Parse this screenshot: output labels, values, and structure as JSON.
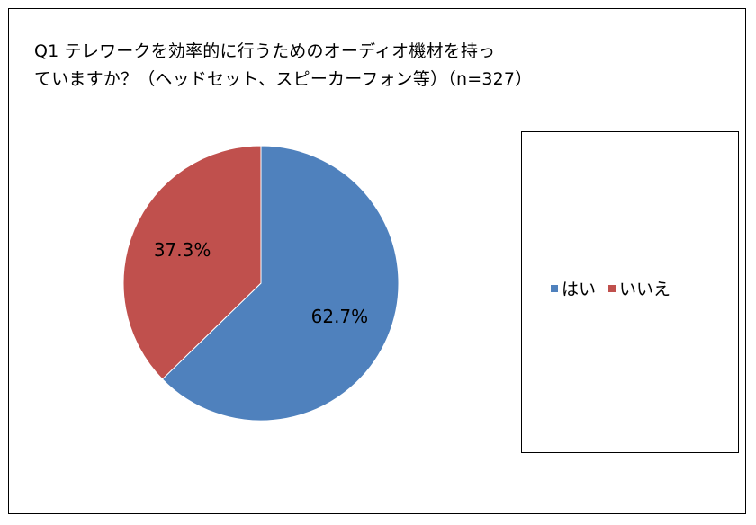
{
  "chart_data": {
    "type": "pie",
    "title_lines": [
      "Q1 テレワークを効率的に行うためのオーディオ機材を持っ",
      "ていますか？（ヘッドセット、スピーカーフォン等）（n=327）"
    ],
    "slices": [
      {
        "name": "はい",
        "value": 62.7,
        "label": "62.7%",
        "color": "#4f81bd"
      },
      {
        "name": "いいえ",
        "value": 37.3,
        "label": "37.3%",
        "color": "#c0504d"
      }
    ],
    "legend_position": "right"
  }
}
